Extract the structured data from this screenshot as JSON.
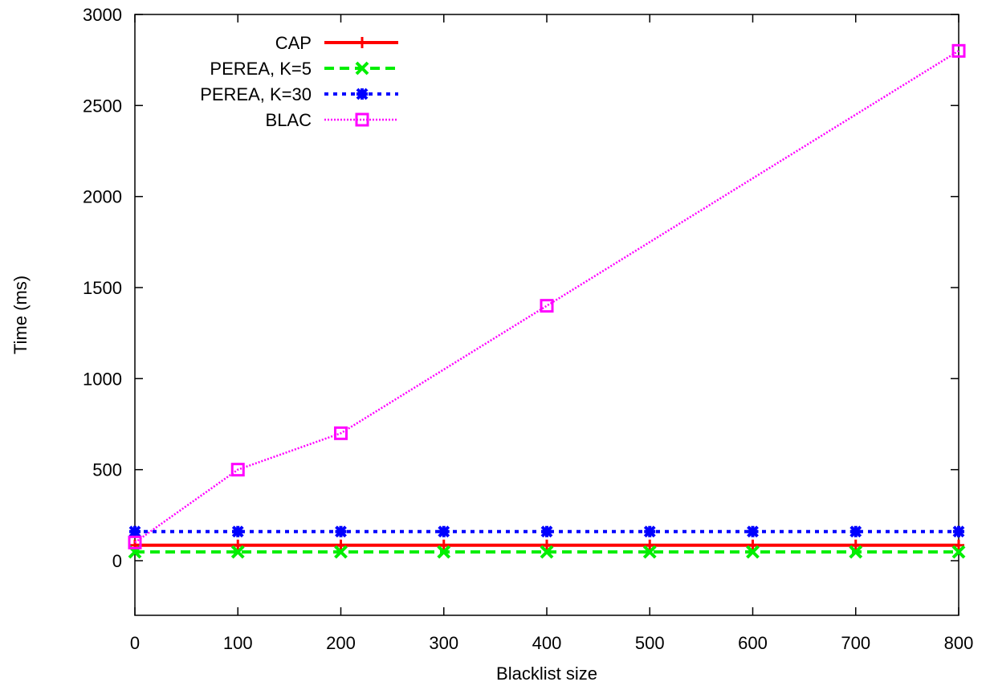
{
  "chart_data": {
    "type": "line",
    "title": "",
    "xlabel": "Blacklist size",
    "ylabel": "Time (ms)",
    "xlim": [
      0,
      800
    ],
    "ylim": [
      -300,
      3000
    ],
    "x_ticks": [
      0,
      100,
      200,
      300,
      400,
      500,
      600,
      700,
      800
    ],
    "y_ticks": [
      0,
      500,
      1000,
      1500,
      2000,
      2500,
      3000
    ],
    "grid": false,
    "legend_position": "top-left",
    "x": [
      0,
      100,
      200,
      300,
      400,
      500,
      600,
      700,
      800
    ],
    "series": [
      {
        "name": "CAP",
        "color": "#ff0000",
        "dash": "solid",
        "marker": "plus",
        "x": [
          0,
          100,
          200,
          300,
          400,
          500,
          600,
          700,
          800
        ],
        "values": [
          85,
          85,
          85,
          85,
          85,
          85,
          85,
          85,
          85
        ]
      },
      {
        "name": "PEREA, K=5",
        "color": "#00ee00",
        "dash": "dashed",
        "marker": "x",
        "x": [
          0,
          100,
          200,
          300,
          400,
          500,
          600,
          700,
          800
        ],
        "values": [
          48,
          48,
          48,
          48,
          48,
          48,
          48,
          48,
          48
        ]
      },
      {
        "name": "PEREA, K=30",
        "color": "#0000ff",
        "dash": "dotted",
        "marker": "star",
        "x": [
          0,
          100,
          200,
          300,
          400,
          500,
          600,
          700,
          800
        ],
        "values": [
          160,
          160,
          160,
          160,
          160,
          160,
          160,
          160,
          160
        ]
      },
      {
        "name": "BLAC",
        "color": "#ff00ff",
        "dash": "fine-dotted",
        "marker": "square",
        "x": [
          0,
          100,
          200,
          400,
          800
        ],
        "values": [
          100,
          500,
          700,
          1400,
          2800
        ]
      }
    ]
  }
}
